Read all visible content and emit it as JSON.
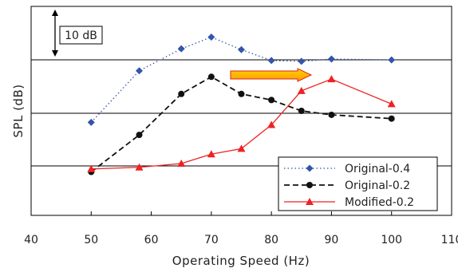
{
  "chart_data": {
    "type": "line",
    "title": "",
    "xlabel": "Operating Speed (Hz)",
    "ylabel": "SPL (dB)",
    "xlim": [
      40,
      110
    ],
    "ylim": [
      0,
      100
    ],
    "xticks": [
      "40",
      "50",
      "60",
      "70",
      "80",
      "90",
      "100",
      "110"
    ],
    "y_tick_labels_shown": false,
    "grid": "horizontal",
    "legend_position": "bottom-right",
    "scale_bar_label": "10 dB",
    "annotation": "arrow pointing right",
    "series": [
      {
        "name": "Original-0.4",
        "color": "#3355aa",
        "line_style": "dotted",
        "marker": "diamond",
        "x": [
          50,
          58,
          65,
          70,
          75,
          80,
          85,
          90,
          100
        ],
        "y": [
          44.5,
          69.2,
          79.7,
          85.3,
          79.3,
          74.1,
          73.7,
          74.8,
          74.4
        ]
      },
      {
        "name": "Original-0.2",
        "color": "#111111",
        "line_style": "dashed",
        "marker": "circle",
        "x": [
          50,
          58,
          65,
          70,
          75,
          80,
          85,
          90,
          100
        ],
        "y": [
          20.8,
          38.5,
          58.1,
          66.3,
          58.1,
          55.2,
          50.0,
          48.1,
          46.3
        ]
      },
      {
        "name": "Modified-0.2",
        "color": "#ee2222",
        "line_style": "solid",
        "marker": "triangle",
        "x": [
          50,
          58,
          65,
          70,
          75,
          80,
          85,
          90,
          100
        ],
        "y": [
          22.2,
          23.0,
          24.8,
          29.3,
          31.9,
          43.3,
          59.6,
          65.2,
          53.3
        ]
      }
    ]
  }
}
